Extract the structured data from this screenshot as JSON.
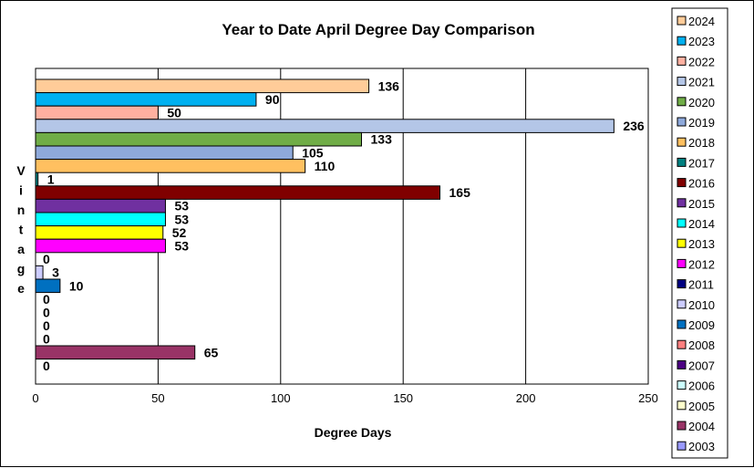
{
  "chart_data": {
    "type": "bar",
    "orientation": "horizontal",
    "title": "Year to Date April Degree Day Comparison",
    "xlabel": "Degree Days",
    "ylabel": "Vintage",
    "xlim": [
      0,
      250
    ],
    "xticks": [
      "0",
      "50",
      "100",
      "150",
      "200",
      "250"
    ],
    "grid": "vertical",
    "legend_position": "right",
    "categories": [
      "2024",
      "2023",
      "2022",
      "2021",
      "2020",
      "2019",
      "2018",
      "2017",
      "2016",
      "2015",
      "2014",
      "2013",
      "2012",
      "2011",
      "2010",
      "2009",
      "2008",
      "2007",
      "2006",
      "2005",
      "2004",
      "2003"
    ],
    "values": [
      136,
      90,
      50,
      236,
      133,
      105,
      110,
      1,
      165,
      53,
      53,
      52,
      53,
      0,
      3,
      10,
      0,
      0,
      0,
      0,
      65,
      0
    ],
    "colors": [
      "#FFCC99",
      "#00B0F0",
      "#FFB0A0",
      "#B4C6E7",
      "#70AD47",
      "#8EA9DB",
      "#FFC060",
      "#008080",
      "#800000",
      "#7030A0",
      "#00FFFF",
      "#FFFF00",
      "#FF00FF",
      "#000080",
      "#CCCCFF",
      "#0070C0",
      "#FF8080",
      "#4B0082",
      "#CCFFFF",
      "#FFFFCC",
      "#993366",
      "#9999FF"
    ]
  }
}
